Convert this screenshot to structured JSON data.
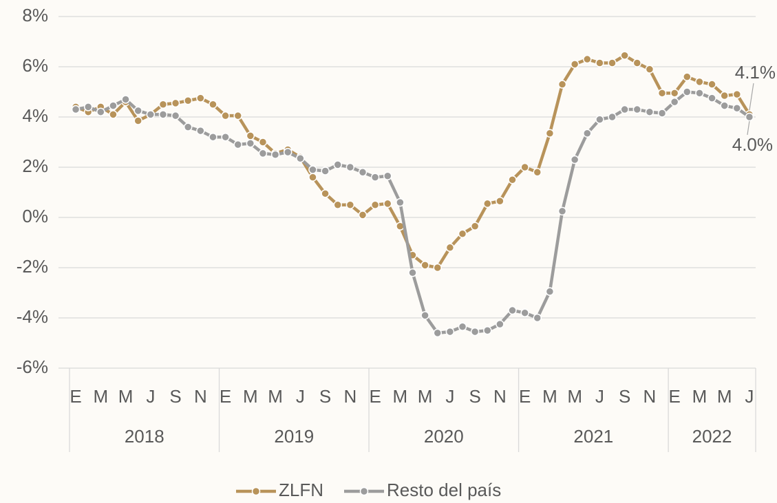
{
  "chart_data": {
    "type": "line",
    "categories": [
      "E",
      null,
      "M",
      null,
      "M",
      null,
      "J",
      null,
      "S",
      null,
      "N",
      null,
      "E",
      null,
      "M",
      null,
      "M",
      null,
      "J",
      null,
      "S",
      null,
      "N",
      null,
      "E",
      null,
      "M",
      null,
      "M",
      null,
      "J",
      null,
      "S",
      null,
      "N",
      null,
      "E",
      null,
      "M",
      null,
      "M",
      null,
      "J",
      null,
      "S",
      null,
      "N",
      null,
      "E",
      null,
      "M",
      null,
      "M",
      null,
      "J"
    ],
    "groups": [
      "2018",
      "2019",
      "2020",
      "2021",
      "2022"
    ],
    "series": [
      {
        "name": "ZLFN",
        "color": "#b8935a",
        "values": [
          4.4,
          4.2,
          4.4,
          4.1,
          4.6,
          3.85,
          4.1,
          4.5,
          4.55,
          4.65,
          4.75,
          4.5,
          4.05,
          4.05,
          3.25,
          3.0,
          2.55,
          2.7,
          2.4,
          1.6,
          0.95,
          0.5,
          0.5,
          0.1,
          0.5,
          0.55,
          -0.35,
          -1.5,
          -1.9,
          -2.0,
          -1.2,
          -0.65,
          -0.35,
          0.55,
          0.65,
          1.5,
          2.0,
          1.8,
          3.35,
          5.3,
          6.1,
          6.3,
          6.15,
          6.15,
          6.45,
          6.15,
          5.9,
          4.95,
          4.95,
          5.6,
          5.4,
          5.3,
          4.85,
          4.9,
          4.1
        ],
        "value_labels": [
          null,
          null,
          null,
          null,
          null,
          null,
          null,
          null,
          null,
          null,
          null,
          null,
          null,
          null,
          null,
          null,
          null,
          null,
          null,
          null,
          null,
          null,
          null,
          null,
          null,
          null,
          null,
          null,
          null,
          null,
          null,
          null,
          null,
          null,
          null,
          null,
          null,
          null,
          null,
          null,
          null,
          null,
          null,
          null,
          null,
          null,
          null,
          null,
          null,
          null,
          null,
          null,
          null,
          null,
          "4.1%"
        ]
      },
      {
        "name": "Resto del país",
        "color": "#9c9c9c",
        "values": [
          4.3,
          4.4,
          4.2,
          4.45,
          4.7,
          4.25,
          4.1,
          4.1,
          4.05,
          3.6,
          3.45,
          3.2,
          3.2,
          2.9,
          2.95,
          2.55,
          2.5,
          2.6,
          2.35,
          1.9,
          1.85,
          2.1,
          2.0,
          1.8,
          1.6,
          1.65,
          0.6,
          -2.2,
          -3.9,
          -4.6,
          -4.55,
          -4.35,
          -4.55,
          -4.5,
          -4.25,
          -3.7,
          -3.8,
          -4.0,
          -2.95,
          0.25,
          2.3,
          3.35,
          3.9,
          4.0,
          4.3,
          4.3,
          4.2,
          4.15,
          4.6,
          5.0,
          4.95,
          4.75,
          4.45,
          4.35,
          4.0
        ],
        "value_labels": [
          null,
          null,
          null,
          null,
          null,
          null,
          null,
          null,
          null,
          null,
          null,
          null,
          null,
          null,
          null,
          null,
          null,
          null,
          null,
          null,
          null,
          null,
          null,
          null,
          null,
          null,
          null,
          null,
          null,
          null,
          null,
          null,
          null,
          null,
          null,
          null,
          null,
          null,
          null,
          null,
          null,
          null,
          null,
          null,
          null,
          null,
          null,
          null,
          null,
          null,
          null,
          null,
          null,
          null,
          "4.0%"
        ]
      }
    ],
    "ylim": [
      -6,
      8
    ],
    "yticks": [
      {
        "value": -6,
        "label": "-6%"
      },
      {
        "value": -4,
        "label": "-4%"
      },
      {
        "value": -2,
        "label": "-2%"
      },
      {
        "value": 0,
        "label": "0%"
      },
      {
        "value": 2,
        "label": "2%"
      },
      {
        "value": 4,
        "label": "4%"
      },
      {
        "value": 6,
        "label": "6%"
      },
      {
        "value": 8,
        "label": "8%"
      }
    ],
    "grid": true,
    "legend": "bottom"
  }
}
